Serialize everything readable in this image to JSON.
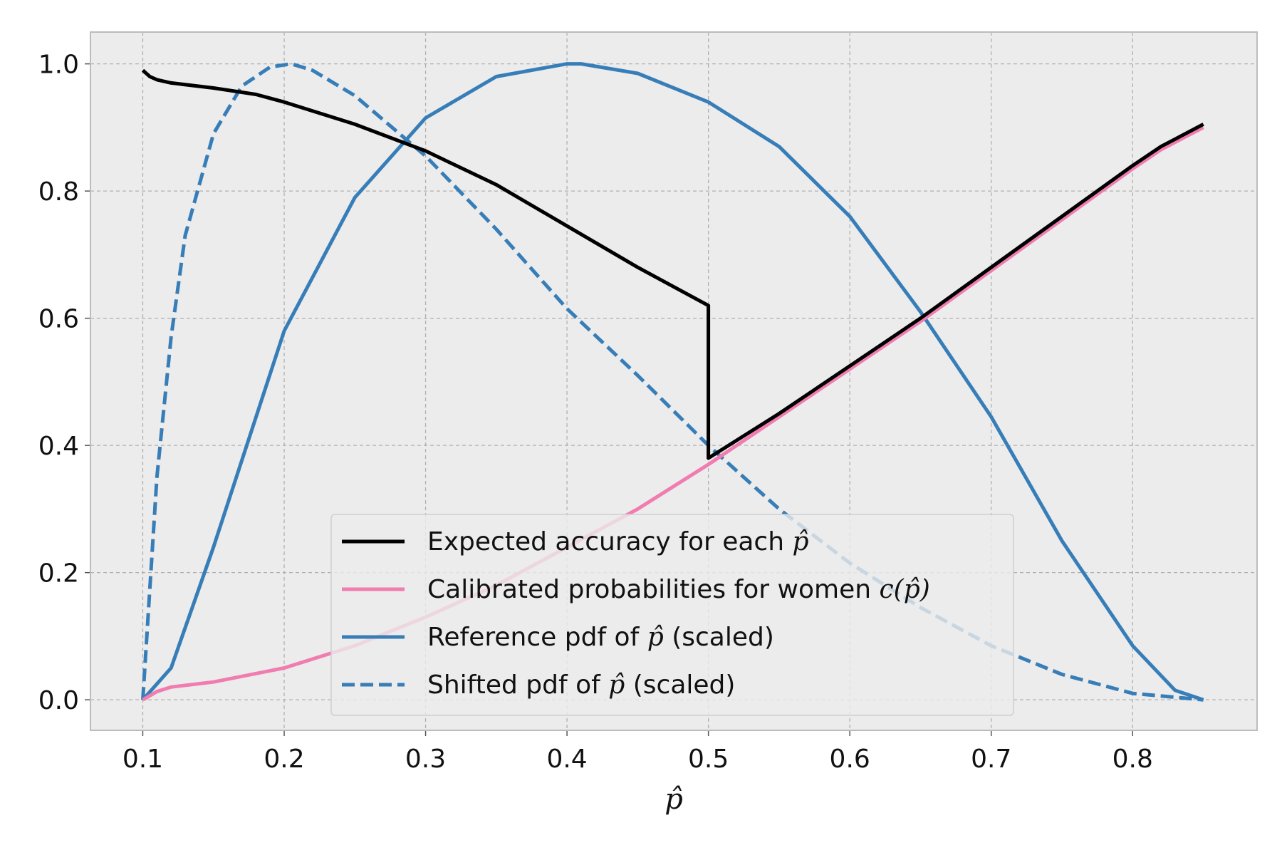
{
  "chart_data": {
    "type": "line",
    "xlabel": "p̂",
    "ylabel": "",
    "title": "",
    "xlim": [
      0.063,
      0.888
    ],
    "ylim": [
      -0.048,
      1.05
    ],
    "x_ticks": [
      0.1,
      0.2,
      0.3,
      0.4,
      0.5,
      0.6,
      0.7,
      0.8
    ],
    "x_tick_labels": [
      "0.1",
      "0.2",
      "0.3",
      "0.4",
      "0.5",
      "0.6",
      "0.7",
      "0.8"
    ],
    "y_ticks": [
      0.0,
      0.2,
      0.4,
      0.6,
      0.8,
      1.0
    ],
    "y_tick_labels": [
      "0.0",
      "0.2",
      "0.4",
      "0.6",
      "0.8",
      "1.0"
    ],
    "grid": true,
    "legend_position": "lower-center",
    "colors": {
      "background": "#ececec",
      "grid": "#b0b0b0",
      "spine": "#bcbcbc",
      "black": "#000000",
      "pink": "#f17cb0",
      "blue": "#377eb8"
    },
    "series": [
      {
        "name": "Expected accuracy for each p̂",
        "name_prefix": "Expected accuracy for each ",
        "name_math": "p̂",
        "name_suffix": "",
        "color": "#000000",
        "dash": "solid",
        "x": [
          0.1,
          0.105,
          0.11,
          0.12,
          0.15,
          0.18,
          0.2,
          0.25,
          0.3,
          0.35,
          0.4,
          0.45,
          0.5,
          0.5,
          0.55,
          0.6,
          0.65,
          0.7,
          0.75,
          0.8,
          0.82,
          0.85
        ],
        "y": [
          0.99,
          0.98,
          0.975,
          0.97,
          0.962,
          0.952,
          0.94,
          0.905,
          0.863,
          0.81,
          0.745,
          0.68,
          0.62,
          0.38,
          0.45,
          0.525,
          0.6,
          0.68,
          0.76,
          0.84,
          0.87,
          0.905
        ]
      },
      {
        "name": "Calibrated probabilities for women c(p̂)",
        "name_prefix": "Calibrated probabilities for women ",
        "name_math": "c(p̂)",
        "name_suffix": "",
        "color": "#f17cb0",
        "dash": "solid",
        "x": [
          0.1,
          0.11,
          0.12,
          0.15,
          0.2,
          0.25,
          0.3,
          0.35,
          0.4,
          0.45,
          0.5,
          0.55,
          0.6,
          0.65,
          0.7,
          0.75,
          0.8,
          0.82,
          0.85
        ],
        "y": [
          0.0,
          0.013,
          0.02,
          0.028,
          0.05,
          0.085,
          0.13,
          0.18,
          0.24,
          0.3,
          0.37,
          0.445,
          0.52,
          0.595,
          0.675,
          0.755,
          0.835,
          0.865,
          0.9
        ]
      },
      {
        "name": "Reference pdf of p̂ (scaled)",
        "name_prefix": "Reference pdf of ",
        "name_math": "p̂",
        "name_suffix": " (scaled)",
        "color": "#377eb8",
        "dash": "solid",
        "x": [
          0.1,
          0.12,
          0.15,
          0.2,
          0.25,
          0.3,
          0.35,
          0.4,
          0.41,
          0.45,
          0.5,
          0.55,
          0.6,
          0.65,
          0.7,
          0.75,
          0.8,
          0.83,
          0.85
        ],
        "y": [
          0.0,
          0.05,
          0.24,
          0.58,
          0.79,
          0.915,
          0.98,
          1.0,
          1.0,
          0.985,
          0.94,
          0.87,
          0.76,
          0.61,
          0.445,
          0.25,
          0.085,
          0.015,
          0.0
        ]
      },
      {
        "name": "Shifted pdf of p̂ (scaled)",
        "name_prefix": "Shifted pdf of ",
        "name_math": "p̂",
        "name_suffix": " (scaled)",
        "color": "#377eb8",
        "dash": "dashed",
        "x": [
          0.1,
          0.11,
          0.12,
          0.13,
          0.15,
          0.17,
          0.19,
          0.205,
          0.22,
          0.25,
          0.3,
          0.35,
          0.4,
          0.45,
          0.5,
          0.55,
          0.6,
          0.65,
          0.7,
          0.75,
          0.8,
          0.85
        ],
        "y": [
          0.0,
          0.35,
          0.57,
          0.73,
          0.89,
          0.965,
          0.995,
          1.0,
          0.99,
          0.95,
          0.855,
          0.74,
          0.615,
          0.51,
          0.4,
          0.3,
          0.215,
          0.145,
          0.085,
          0.04,
          0.01,
          0.0
        ]
      }
    ]
  }
}
